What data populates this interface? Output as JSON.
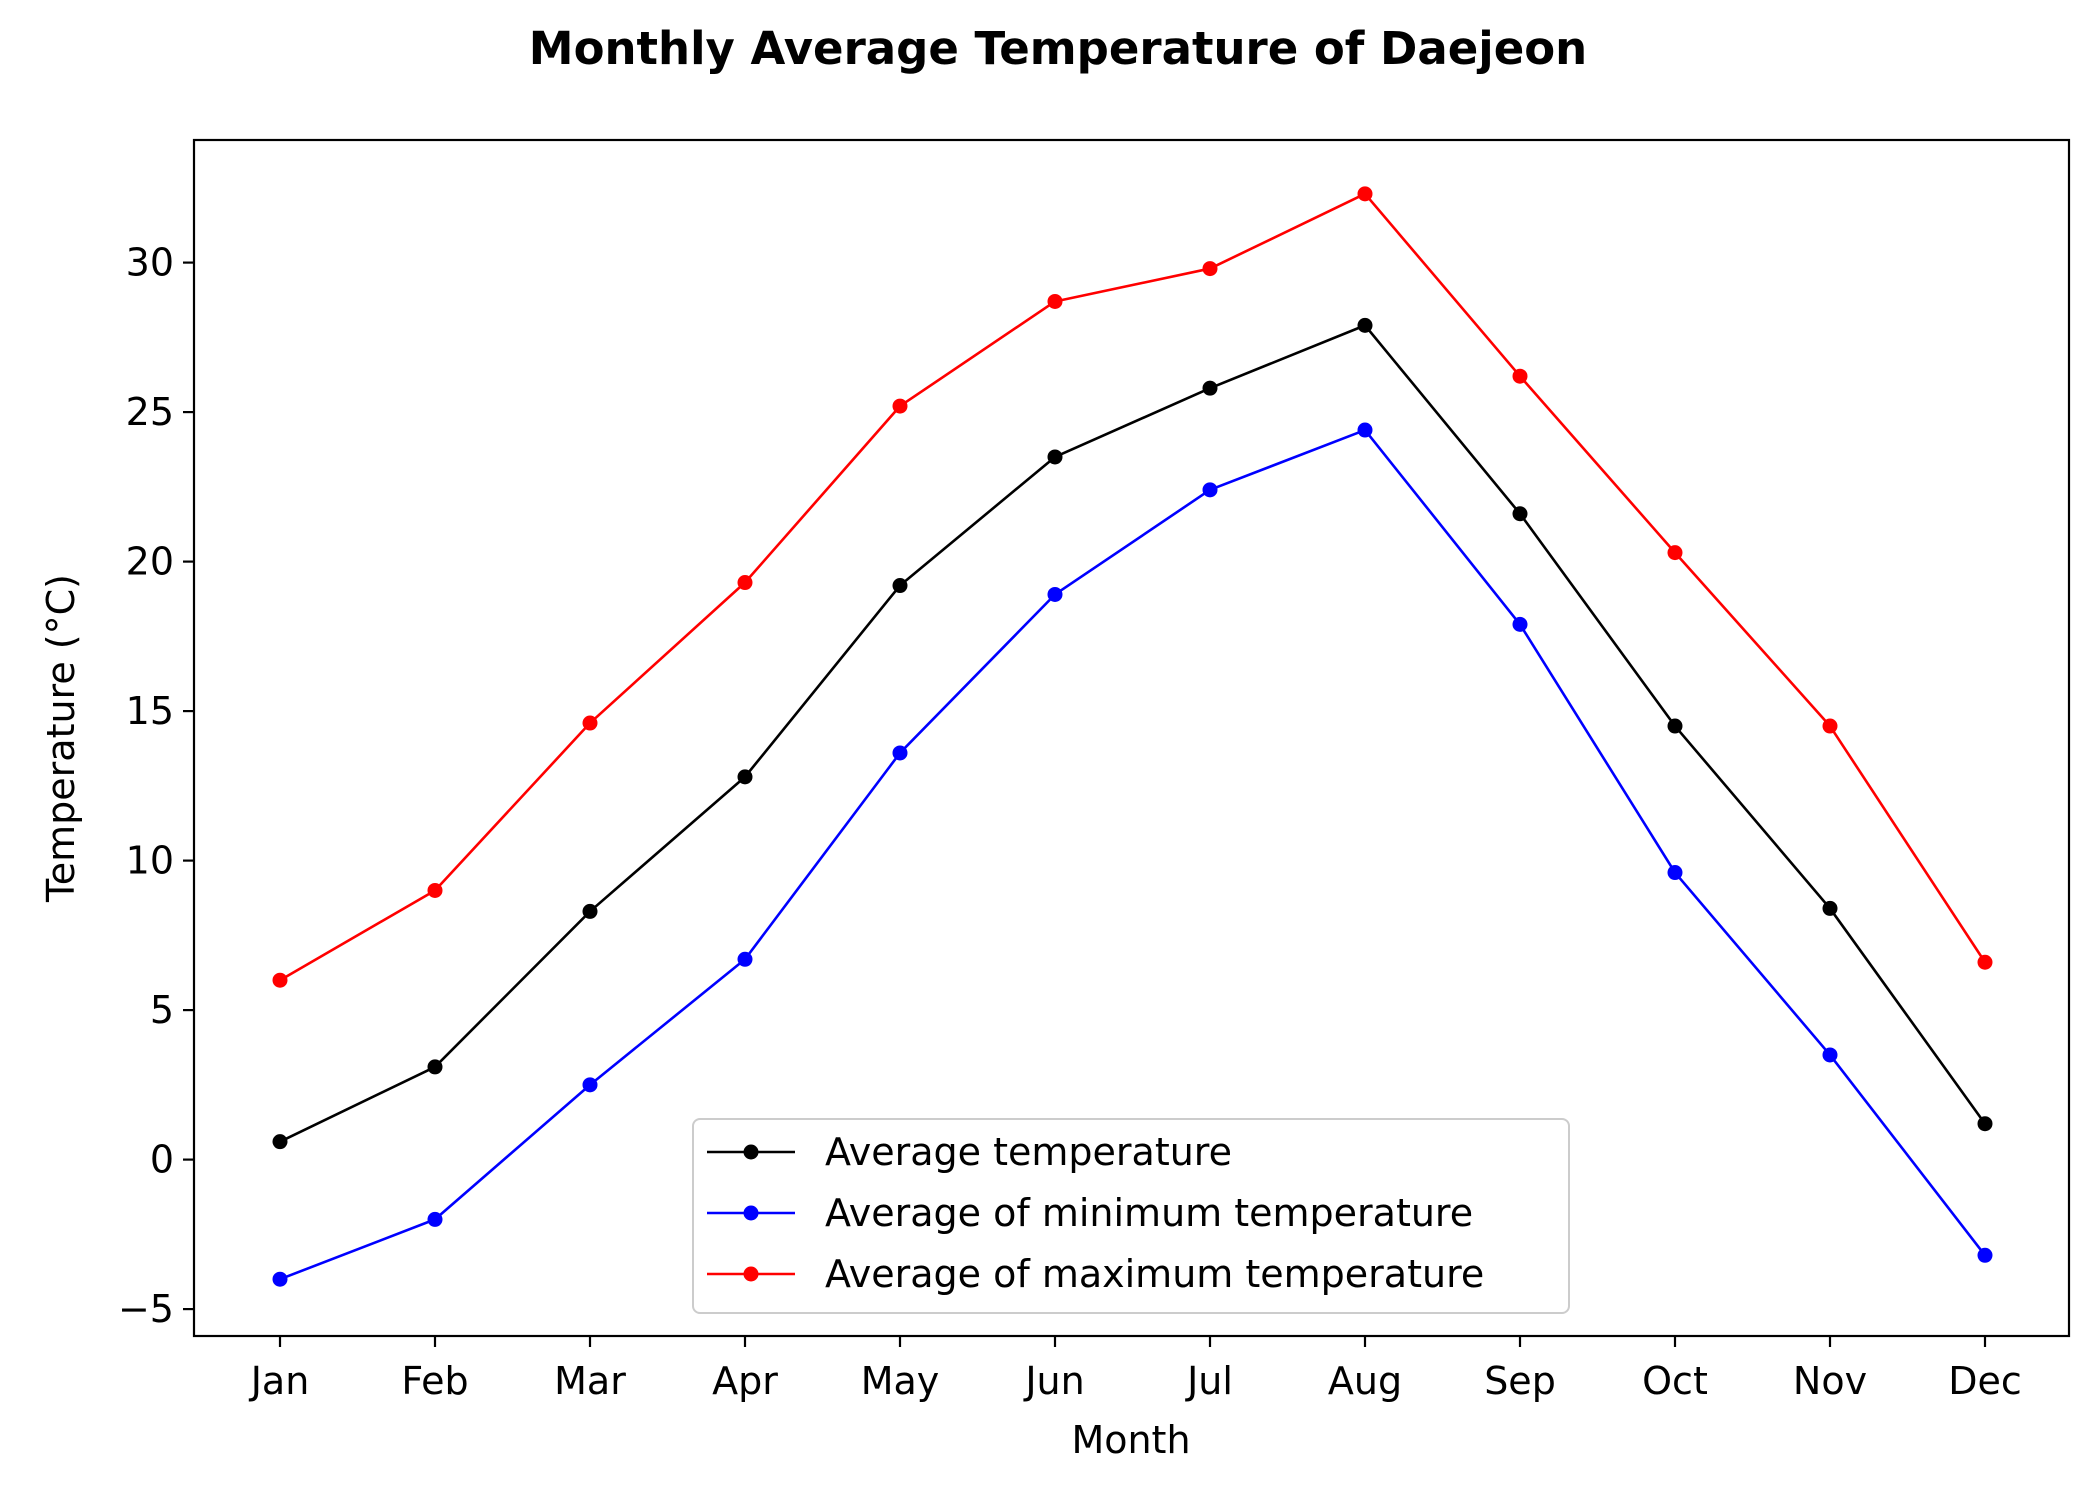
{
  "chart_data": {
    "type": "line",
    "title": "Monthly Average Temperature of Daejeon",
    "xlabel": "Month",
    "ylabel": "Temperature (°C)",
    "ylim": [
      -5.9,
      34.1
    ],
    "yticks": [
      -5,
      0,
      5,
      10,
      15,
      20,
      25,
      30
    ],
    "categories": [
      "Jan",
      "Feb",
      "Mar",
      "Apr",
      "May",
      "Jun",
      "Jul",
      "Aug",
      "Sep",
      "Oct",
      "Nov",
      "Dec"
    ],
    "grid": false,
    "legend_position": "lower-center",
    "series": [
      {
        "name": "Average temperature",
        "color": "#000000",
        "values": [
          0.6,
          3.1,
          8.3,
          12.8,
          19.2,
          23.5,
          25.8,
          27.9,
          21.6,
          14.5,
          8.4,
          1.2
        ]
      },
      {
        "name": "Average of minimum temperature",
        "color": "#0000ff",
        "values": [
          -4.0,
          -2.0,
          2.5,
          6.7,
          13.6,
          18.9,
          22.4,
          24.4,
          17.9,
          9.6,
          3.5,
          -3.2
        ]
      },
      {
        "name": "Average of maximum temperature",
        "color": "#ff0000",
        "values": [
          6.0,
          9.0,
          14.6,
          19.3,
          25.2,
          28.7,
          29.8,
          32.3,
          26.2,
          20.3,
          14.5,
          6.6
        ]
      }
    ]
  }
}
